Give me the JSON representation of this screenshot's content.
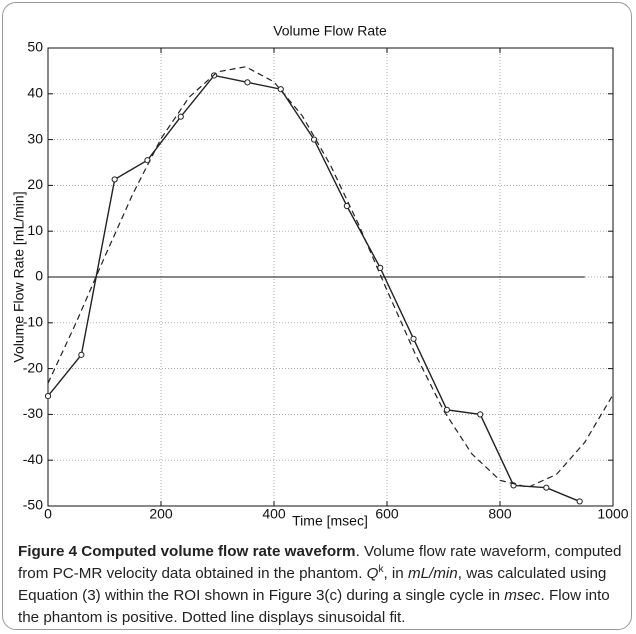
{
  "chart_data": {
    "type": "line",
    "title": "Volume Flow Rate",
    "xlabel": "Time [msec]",
    "ylabel": "Volume Flow Rate [mL/min]",
    "xlim": [
      0,
      1000
    ],
    "xticks": [
      0,
      200,
      400,
      600,
      800,
      1000
    ],
    "ylim": [
      -50,
      50
    ],
    "yticks": [
      -50,
      -40,
      -30,
      -20,
      -10,
      0,
      10,
      20,
      30,
      40,
      50
    ],
    "grid": true,
    "hline": {
      "y": 0,
      "xmax": 950
    },
    "series": [
      {
        "style": "solid-markers",
        "color": "#222222",
        "x": [
          0,
          59,
          118,
          176,
          235,
          294,
          353,
          412,
          471,
          529,
          588,
          647,
          706,
          765,
          824,
          882,
          941
        ],
        "values": [
          -26,
          -17,
          21.3,
          25.5,
          35,
          44,
          42.5,
          41,
          30,
          15.5,
          2,
          -13.5,
          -29,
          -30,
          -45.5,
          -46,
          -49
        ]
      },
      {
        "style": "dashed",
        "color": "#222222",
        "x": [
          0,
          50,
          100,
          150,
          200,
          250,
          300,
          350,
          400,
          450,
          500,
          550,
          600,
          650,
          700,
          750,
          800,
          850,
          900,
          950,
          1000
        ],
        "values": [
          -23.2,
          -9.9,
          4.3,
          18.1,
          30.2,
          39.3,
          44.8,
          45.9,
          42.6,
          35.2,
          24.4,
          11.4,
          -2.9,
          -16.8,
          -29.1,
          -38.6,
          -44.4,
          -45.9,
          -43.1,
          -36.1,
          -25.7
        ]
      }
    ]
  },
  "caption": [
    {
      "text": "Figure 4 Computed volume flow rate waveform",
      "style": "bold"
    },
    {
      "text": ". Volume flow rate waveform, computed from PC-MR velocity data obtained in the phantom. ",
      "style": "normal"
    },
    {
      "text": "Q",
      "style": "italic"
    },
    {
      "text": "k",
      "style": "sup"
    },
    {
      "text": ", in ",
      "style": "normal"
    },
    {
      "text": "mL/min",
      "style": "italic"
    },
    {
      "text": ", was calculated using Equation (3) within the ROI shown in Figure 3(c) during a single cycle in ",
      "style": "normal"
    },
    {
      "text": "msec",
      "style": "italic"
    },
    {
      "text": ". Flow into the phantom is positive. Dotted line displays sinusoidal fit.",
      "style": "normal"
    }
  ]
}
